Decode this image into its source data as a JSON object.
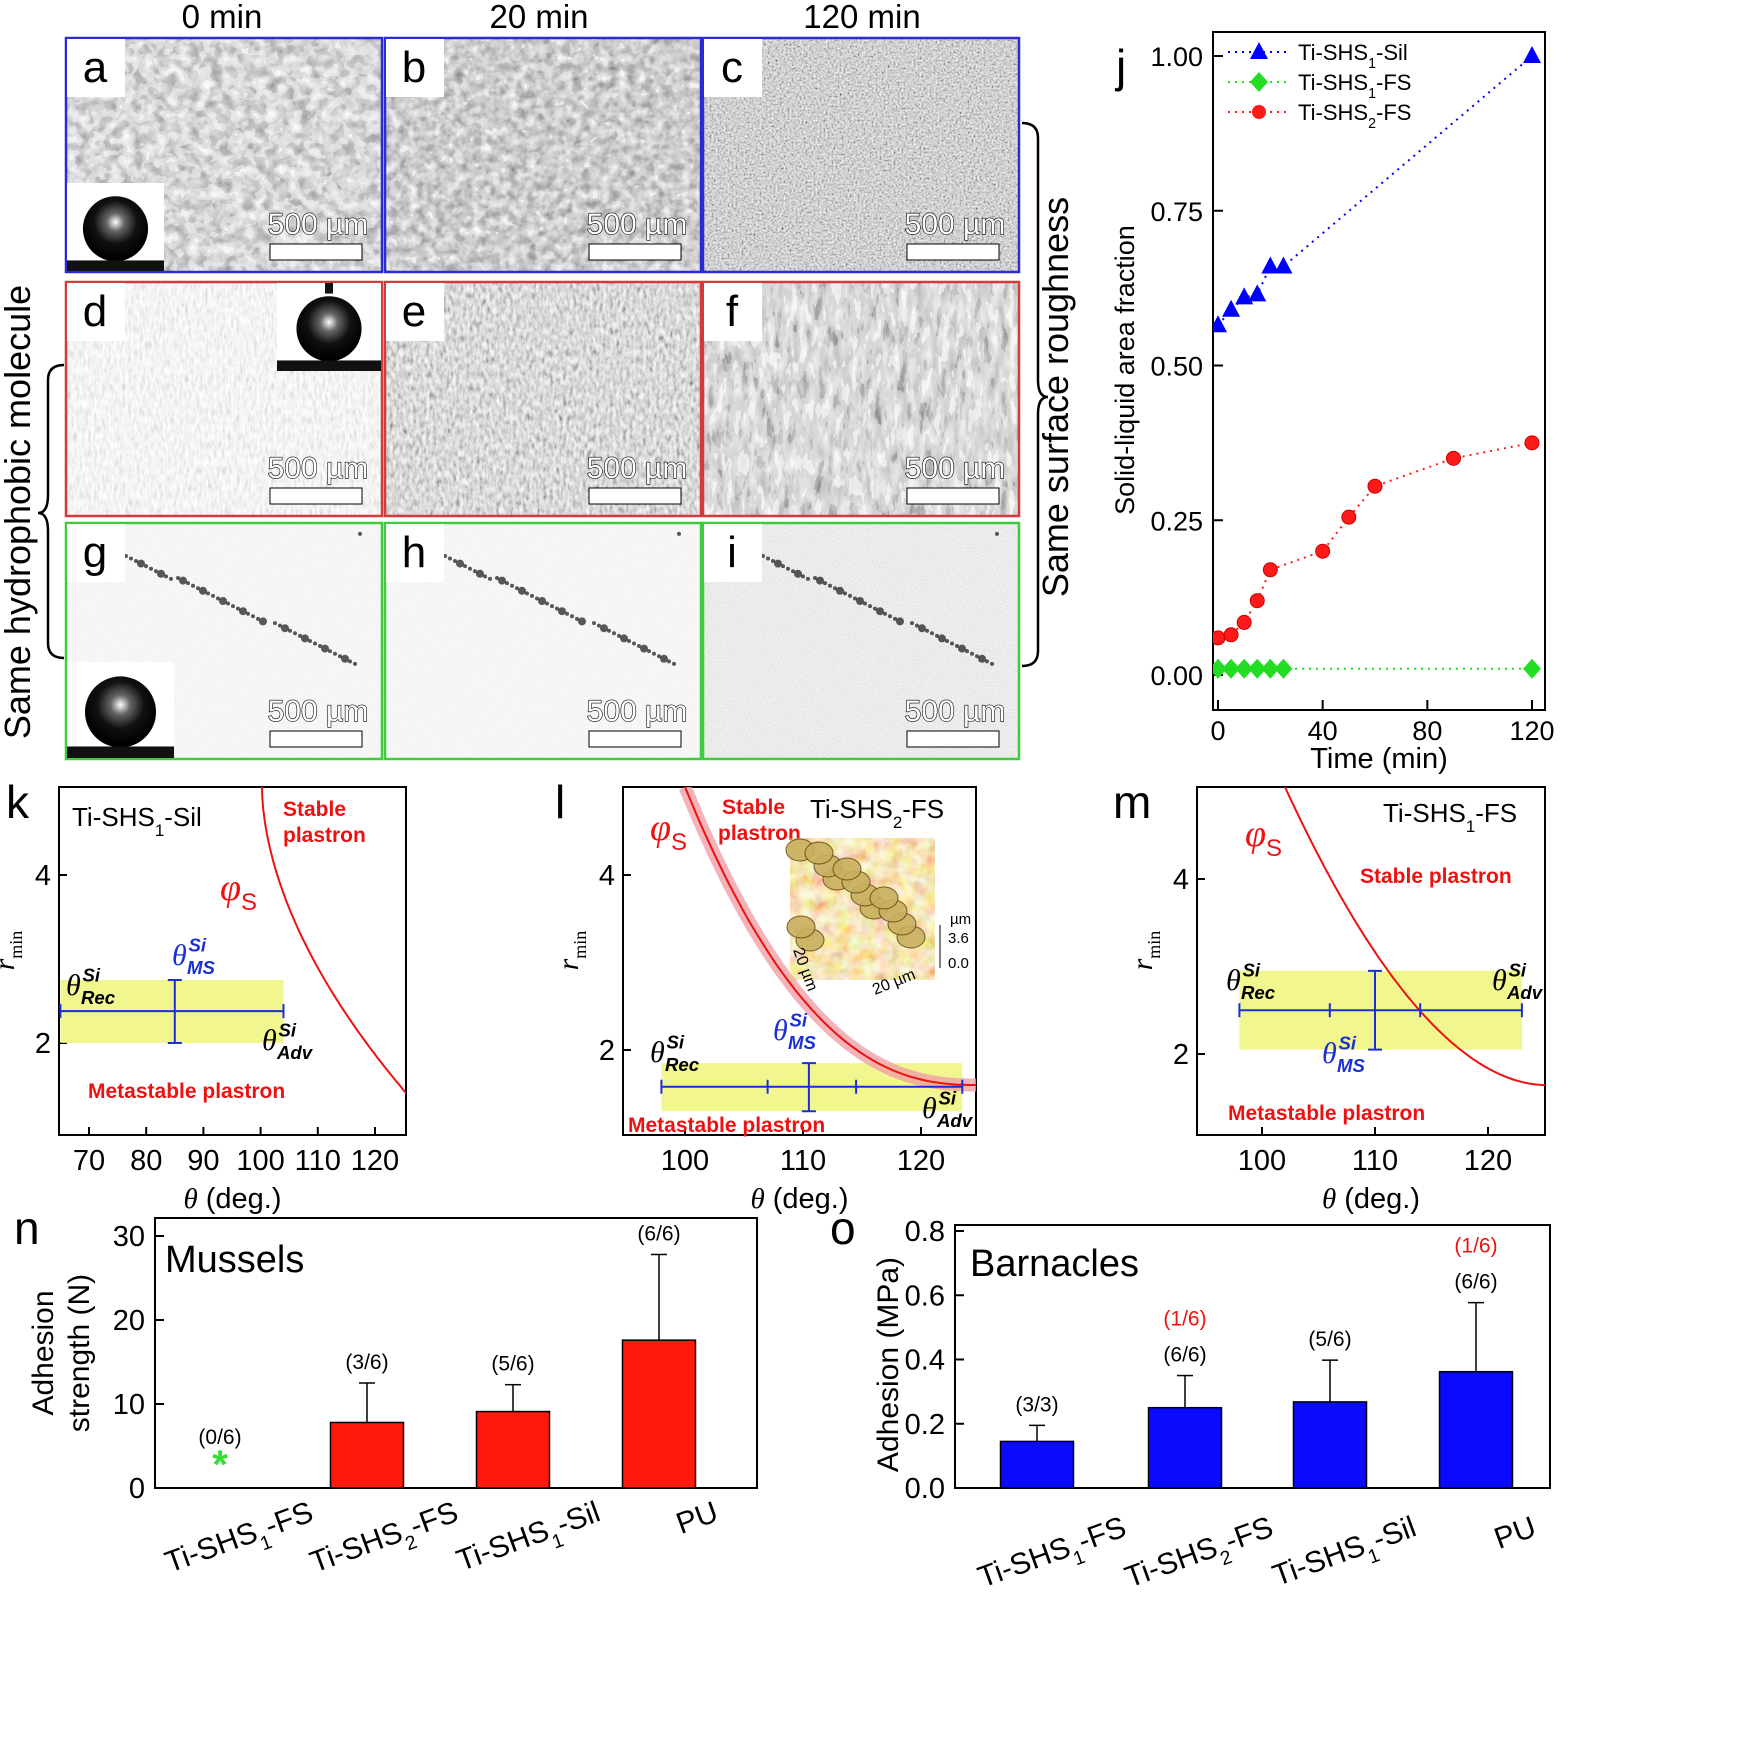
{
  "micro": {
    "columns": [
      "0 min",
      "20 min",
      "120 min"
    ],
    "side_left": "Same hydrophobic molecule",
    "side_right": "Same surface roughness",
    "scale": "500 µm",
    "panels": [
      {
        "letter": "a",
        "row": 0,
        "col": 0,
        "color": "#2b2bd4",
        "style": "dark"
      },
      {
        "letter": "b",
        "row": 0,
        "col": 1,
        "color": "#2b2bd4",
        "style": "dark2"
      },
      {
        "letter": "c",
        "row": 0,
        "col": 2,
        "color": "#2b2bd4",
        "style": "fine"
      },
      {
        "letter": "d",
        "row": 1,
        "col": 0,
        "color": "#d43a3a",
        "style": "light"
      },
      {
        "letter": "e",
        "row": 1,
        "col": 1,
        "color": "#d43a3a",
        "style": "mid"
      },
      {
        "letter": "f",
        "row": 1,
        "col": 2,
        "color": "#d43a3a",
        "style": "streak"
      },
      {
        "letter": "g",
        "row": 2,
        "col": 0,
        "color": "#3ccc3c",
        "style": "grey"
      },
      {
        "letter": "h",
        "row": 2,
        "col": 1,
        "color": "#3ccc3c",
        "style": "grey"
      },
      {
        "letter": "i",
        "row": 2,
        "col": 2,
        "color": "#3ccc3c",
        "style": "grey2"
      }
    ]
  },
  "chart_data": [
    {
      "id": "j",
      "type": "line",
      "ylabel": "Solid-liquid area fraction",
      "xlabel": "Time (min)",
      "xlim": [
        0,
        120
      ],
      "ylim": [
        0,
        1.0
      ],
      "xticks": [
        "0",
        "40",
        "80",
        "120"
      ],
      "yticks": [
        "0.00",
        "0.25",
        "0.50",
        "0.75",
        "1.00"
      ],
      "legend_position": "top-left",
      "series": [
        {
          "name": "Ti-SHS1-Sil",
          "color": "#0000ff",
          "marker": "triangle",
          "x": [
            0,
            5,
            10,
            15,
            20,
            25,
            120
          ],
          "y": [
            0.565,
            0.59,
            0.61,
            0.615,
            0.66,
            0.66,
            1.0
          ]
        },
        {
          "name": "Ti-SHS1-FS",
          "color": "#22dd22",
          "marker": "diamond",
          "x": [
            0,
            5,
            10,
            15,
            20,
            25,
            120
          ],
          "y": [
            0.01,
            0.01,
            0.01,
            0.01,
            0.01,
            0.01,
            0.01
          ]
        },
        {
          "name": "Ti-SHS2-FS",
          "color": "#ff1a1a",
          "marker": "circle",
          "x": [
            0,
            5,
            10,
            15,
            20,
            40,
            50,
            60,
            90,
            120
          ],
          "y": [
            0.06,
            0.065,
            0.085,
            0.12,
            0.17,
            0.2,
            0.255,
            0.305,
            0.35,
            0.375
          ]
        }
      ]
    },
    {
      "id": "k",
      "type": "line",
      "title": "Ti-SHS1-Sil",
      "xlabel": "θ (deg.)",
      "ylabel": "r min",
      "xlim": [
        65,
        125
      ],
      "ylim": [
        1.0,
        5.0
      ],
      "xticks": [
        "70",
        "80",
        "90",
        "100",
        "110",
        "120"
      ],
      "yticks": [
        "2",
        "4"
      ],
      "curve": "φS",
      "band_y": [
        2.0,
        2.75
      ],
      "band_x": [
        65,
        104
      ],
      "bar_y": 2.38,
      "bar_x": [
        65,
        104
      ],
      "ms_x": 85,
      "labels": {
        "stable": "Stable plastron",
        "metastable": "Metastable plastron",
        "rec": "θRecSi",
        "adv": "θAdvSi",
        "ms": "θMSSi"
      }
    },
    {
      "id": "l",
      "type": "line",
      "title": "Ti-SHS2-FS",
      "xlabel": "θ (deg.)",
      "ylabel": "r min",
      "xlim": [
        95,
        125
      ],
      "ylim": [
        1.0,
        5.0
      ],
      "xticks": [
        "100",
        "110",
        "120"
      ],
      "yticks": [
        "2",
        "4"
      ],
      "curve": "φS",
      "band_y": [
        1.3,
        1.85
      ],
      "band_x": [
        98,
        123.5
      ],
      "bar_y": 1.58,
      "bar_x": [
        98,
        123.5
      ],
      "ms_x": 110.5,
      "inset": {
        "unit": "µm",
        "zmax": "3.6",
        "zmin": "0.0",
        "xy": "20 µm"
      },
      "labels": {
        "stable": "Stable plastron",
        "metastable": "Metastable plastron",
        "rec": "θRecSi",
        "adv": "θAdvSi",
        "ms": "θMSSi"
      }
    },
    {
      "id": "m",
      "type": "line",
      "title": "Ti-SHS1-FS",
      "xlabel": "θ (deg.)",
      "ylabel": "r min",
      "xlim": [
        95,
        125
      ],
      "ylim": [
        1.0,
        5.0
      ],
      "xticks": [
        "100",
        "110",
        "120"
      ],
      "yticks": [
        "2",
        "4"
      ],
      "curve": "φS",
      "band_y": [
        2.05,
        2.95
      ],
      "band_x": [
        98,
        123
      ],
      "bar_y": 2.5,
      "bar_x": [
        98,
        123
      ],
      "ms_x": 110,
      "labels": {
        "stable": "Stable plastron",
        "metastable": "Metastable plastron",
        "rec": "θRecSi",
        "adv": "θAdvSi",
        "ms": "θMSSi"
      }
    },
    {
      "id": "n",
      "type": "bar",
      "title": "Mussels",
      "ylabel": "Adhesion strength (N)",
      "ylim": [
        0,
        30
      ],
      "yticks": [
        "0",
        "10",
        "20",
        "30"
      ],
      "categories": [
        "Ti-SHS1-FS",
        "Ti-SHS2-FS",
        "Ti-SHS1-Sil",
        "PU"
      ],
      "values": [
        0,
        7.8,
        9.1,
        17.6
      ],
      "errors": [
        0,
        4.7,
        3.2,
        10.2
      ],
      "color": "#ff1a0d",
      "annotations": [
        [
          "(0/6)"
        ],
        [
          "(3/6)"
        ],
        [
          "(5/6)"
        ],
        [
          "(6/6)"
        ]
      ],
      "zero_marker": "*"
    },
    {
      "id": "o",
      "type": "bar",
      "title": "Barnacles",
      "ylabel": "Adhesion (MPa)",
      "ylim": [
        0,
        0.8
      ],
      "yticks": [
        "0.0",
        "0.2",
        "0.4",
        "0.6",
        "0.8"
      ],
      "categories": [
        "Ti-SHS1-FS",
        "Ti-SHS2-FS",
        "Ti-SHS1-Sil",
        "PU"
      ],
      "values": [
        0.145,
        0.25,
        0.268,
        0.362
      ],
      "errors": [
        0.05,
        0.1,
        0.13,
        0.215
      ],
      "color": "#0a0aff",
      "annotations": [
        [
          "(3/3)"
        ],
        [
          "(1/6)",
          "(6/6)"
        ],
        [
          "(5/6)"
        ],
        [
          "(1/6)",
          "(6/6)"
        ]
      ],
      "red_annotation": "(1/6)"
    }
  ]
}
